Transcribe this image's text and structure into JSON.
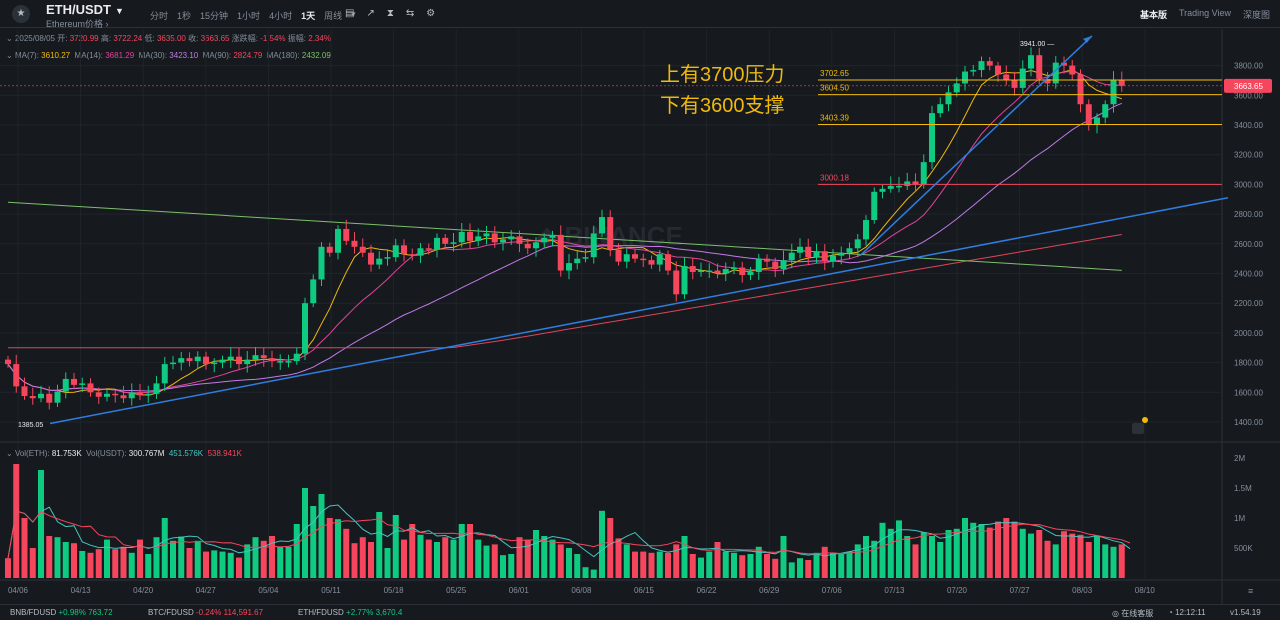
{
  "header": {
    "symbol": "ETH/USDT",
    "caret": "▼",
    "subtitle": "Ethereum价格 ›",
    "timeframes": [
      "分时",
      "1秒",
      "15分钟",
      "1小时",
      "4小时",
      "1天",
      "周线",
      "▾"
    ],
    "active_timeframe_index": 5,
    "tool_icons": [
      "▤",
      "↗",
      "⧗",
      "⇆",
      "⚙"
    ],
    "views": [
      "基本版",
      "Trading View",
      "深度图"
    ],
    "active_view_index": 0
  },
  "ohlc": {
    "date": "2025/08/05",
    "open_label": "开:",
    "open": "3720.99",
    "high_label": "高:",
    "high": "3722.24",
    "low_label": "低:",
    "low": "3635.00",
    "close_label": "收:",
    "close": "3663.65",
    "change_label": "涨跌幅:",
    "change": "-1.54%",
    "amp_label": "振幅:",
    "amp": "2.34%"
  },
  "ma_legend": [
    {
      "label": "MA(7):",
      "value": "3610.27",
      "color": "#f0b90b"
    },
    {
      "label": "MA(14):",
      "value": "3681.29",
      "color": "#e0449a"
    },
    {
      "label": "MA(30):",
      "value": "3423.10",
      "color": "#c379e8"
    },
    {
      "label": "MA(90):",
      "value": "2824.79",
      "color": "#e0445a"
    },
    {
      "label": "MA(180):",
      "value": "2432.09",
      "color": "#7dbf6b"
    }
  ],
  "vol_legend": {
    "label_eth": "Vol(ETH):",
    "eth": "81.753K",
    "label_usdt": "Vol(USDT):",
    "usdt": "300.767M",
    "ma5": "451.576K",
    "ma10": "538.941K"
  },
  "annotation": [
    "上有3700压力",
    "下有3600支撑"
  ],
  "chart_data": {
    "type": "candlestick",
    "x_labels": [
      "04/06",
      "04/13",
      "04/20",
      "04/27",
      "05/04",
      "05/11",
      "05/18",
      "05/25",
      "06/01",
      "06/08",
      "06/15",
      "06/22",
      "06/29",
      "07/06",
      "07/13",
      "07/20",
      "07/27",
      "08/03",
      "08/10"
    ],
    "y_ticks": [
      1400,
      1600,
      1800,
      2000,
      2200,
      2400,
      2600,
      2800,
      3000,
      3200,
      3400,
      3600,
      3800
    ],
    "y_tick_labels": [
      "1400.00",
      "1600.00",
      "1800.00",
      "2000.00",
      "2200.00",
      "2400.00",
      "2600.00",
      "2800.00",
      "3000.00",
      "3200.00",
      "3400.00",
      "3600.00",
      "3800.00"
    ],
    "vol_ticks": [
      0.5,
      1,
      1.5,
      2
    ],
    "vol_tick_labels": [
      "500K",
      "1M",
      "1.5M",
      "2M"
    ],
    "last_price": "3663.65",
    "horizontal_levels": [
      {
        "value": 3702.65,
        "label": "3702.65",
        "color": "#f0b90b"
      },
      {
        "value": 3604.5,
        "label": "3604.50",
        "color": "#f0b90b"
      },
      {
        "value": 3403.39,
        "label": "3403.39",
        "color": "#f0b90b"
      },
      {
        "value": 3000.18,
        "label": "3000.18",
        "color": "#f6465d"
      }
    ],
    "marks": {
      "high": "3941.00",
      "low": "1385.05"
    },
    "closes": [
      1790,
      1640,
      1575,
      1560,
      1590,
      1530,
      1605,
      1690,
      1650,
      1660,
      1600,
      1570,
      1590,
      1580,
      1560,
      1600,
      1580,
      1590,
      1660,
      1790,
      1800,
      1830,
      1810,
      1840,
      1790,
      1800,
      1820,
      1840,
      1790,
      1820,
      1850,
      1830,
      1810,
      1810,
      1810,
      1860,
      2200,
      2360,
      2580,
      2540,
      2700,
      2620,
      2580,
      2540,
      2460,
      2500,
      2510,
      2590,
      2530,
      2520,
      2570,
      2560,
      2640,
      2600,
      2610,
      2680,
      2620,
      2650,
      2670,
      2610,
      2630,
      2650,
      2600,
      2570,
      2610,
      2640,
      2660,
      2420,
      2470,
      2500,
      2510,
      2670,
      2780,
      2560,
      2480,
      2530,
      2500,
      2490,
      2460,
      2530,
      2420,
      2260,
      2450,
      2410,
      2420,
      2420,
      2400,
      2430,
      2440,
      2390,
      2410,
      2500,
      2480,
      2430,
      2490,
      2540,
      2580,
      2510,
      2550,
      2480,
      2520,
      2540,
      2570,
      2630,
      2760,
      2950,
      2970,
      2990,
      2990,
      3020,
      3000,
      3150,
      3480,
      3540,
      3620,
      3680,
      3760,
      3770,
      3830,
      3800,
      3740,
      3700,
      3650,
      3780,
      3870,
      3710,
      3680,
      3820,
      3800,
      3740,
      3540,
      3400,
      3450,
      3540,
      3700,
      3663.65
    ],
    "volumes_k": [
      330,
      1900,
      1000,
      500,
      1800,
      700,
      680,
      600,
      580,
      450,
      420,
      480,
      640,
      480,
      520,
      420,
      640,
      400,
      680,
      1000,
      620,
      690,
      500,
      620,
      440,
      460,
      440,
      420,
      340,
      560,
      680,
      620,
      700,
      520,
      520,
      900,
      1500,
      1200,
      1400,
      1000,
      980,
      820,
      580,
      680,
      600,
      1100,
      500,
      1050,
      640,
      900,
      720,
      640,
      600,
      680,
      640,
      900,
      900,
      640,
      540,
      560,
      380,
      400,
      680,
      640,
      800,
      700,
      640,
      560,
      500,
      400,
      180,
      140,
      1120,
      1000,
      660,
      560,
      440,
      440,
      420,
      440,
      420,
      560,
      700,
      400,
      340,
      440,
      600,
      440,
      420,
      380,
      400,
      520,
      400,
      320,
      700,
      260,
      330,
      300,
      420,
      520,
      420,
      400,
      440,
      560,
      700,
      620,
      920,
      820,
      960,
      700,
      560,
      760,
      700,
      600,
      800,
      820,
      1000,
      920,
      900,
      840,
      940,
      1000,
      940,
      820,
      740,
      800,
      620,
      560,
      780,
      740,
      720,
      600,
      700,
      560,
      520,
      560,
      100
    ],
    "ma_series": [
      {
        "name": "MA(7)",
        "color": "#f0b90b"
      },
      {
        "name": "MA(14)",
        "color": "#e0449a"
      },
      {
        "name": "MA(30)",
        "color": "#c379e8"
      },
      {
        "name": "MA(90)",
        "color": "#e0445a"
      },
      {
        "name": "MA(180)",
        "color": "#7dbf6b"
      }
    ]
  },
  "footer": {
    "tickers": [
      {
        "sym": "BNB/FDUSD",
        "chg": "+0.98%",
        "price": "763.72",
        "dir": "up"
      },
      {
        "sym": "BTC/FDUSD",
        "chg": "-0.24%",
        "price": "114,591.67",
        "dir": "down"
      },
      {
        "sym": "ETH/FDUSD",
        "chg": "+2.77%",
        "price": "3,670.4",
        "dir": "up"
      }
    ],
    "support": "在线客服",
    "time": "12:12:11",
    "version": "v1.54.19"
  }
}
